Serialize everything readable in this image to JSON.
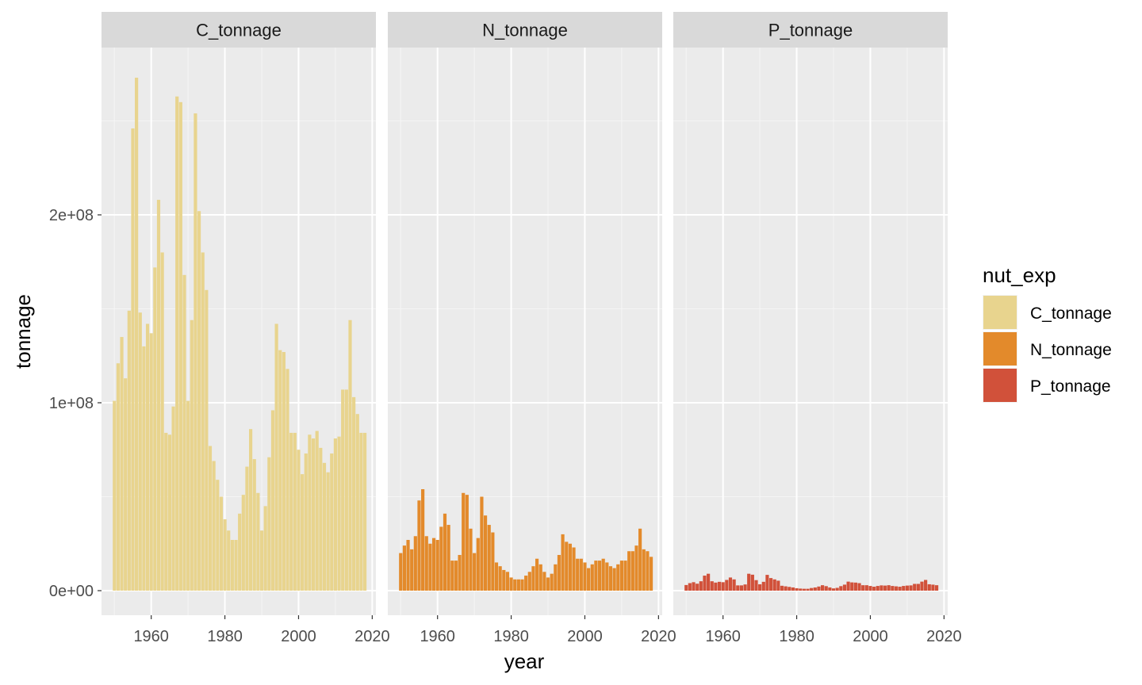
{
  "chart_data": {
    "type": "bar",
    "xlabel": "year",
    "ylabel": "tonnage",
    "x_ticks": [
      1960,
      1980,
      2000,
      2020
    ],
    "y_ticks": [
      0,
      100000000,
      200000000
    ],
    "y_tick_labels": [
      "0e+00",
      "1e+08",
      "2e+08"
    ],
    "xlim": [
      1946.5,
      2021
    ],
    "ylim": [
      -13000000,
      310000000
    ],
    "grid": true,
    "legend": {
      "title": "nut_exp",
      "placement": "right",
      "entries": [
        "C_tonnage",
        "N_tonnage",
        "P_tonnage"
      ]
    },
    "years": [
      1950,
      1951,
      1952,
      1953,
      1954,
      1955,
      1956,
      1957,
      1958,
      1959,
      1960,
      1961,
      1962,
      1963,
      1964,
      1965,
      1966,
      1967,
      1968,
      1969,
      1970,
      1971,
      1972,
      1973,
      1974,
      1975,
      1976,
      1977,
      1978,
      1979,
      1980,
      1981,
      1982,
      1983,
      1984,
      1985,
      1986,
      1987,
      1988,
      1989,
      1990,
      1991,
      1992,
      1993,
      1994,
      1995,
      1996,
      1997,
      1998,
      1999,
      2000,
      2001,
      2002,
      2003,
      2004,
      2005,
      2006,
      2007,
      2008,
      2009,
      2010,
      2011,
      2012,
      2013,
      2014,
      2015,
      2016,
      2017,
      2018
    ],
    "panels": [
      {
        "name": "C_tonnage",
        "color": "#E8D48E",
        "values": [
          101000000,
          121000000,
          135000000,
          113000000,
          149000000,
          246000000,
          273000000,
          148000000,
          130000000,
          142000000,
          137000000,
          172000000,
          208000000,
          180000000,
          84000000,
          83000000,
          98000000,
          263000000,
          260000000,
          168000000,
          101000000,
          144000000,
          254000000,
          202000000,
          180000000,
          160000000,
          77000000,
          69000000,
          59000000,
          50000000,
          38000000,
          32000000,
          27000000,
          27000000,
          41000000,
          51000000,
          66000000,
          86000000,
          70000000,
          52000000,
          32000000,
          45000000,
          71000000,
          96000000,
          142000000,
          128000000,
          127000000,
          118000000,
          84000000,
          84000000,
          75000000,
          62000000,
          73000000,
          83000000,
          81000000,
          85000000,
          76000000,
          68000000,
          63000000,
          73000000,
          81000000,
          82000000,
          107000000,
          107000000,
          144000000,
          103000000,
          94000000,
          84000000,
          84000000
        ]
      },
      {
        "name": "N_tonnage",
        "color": "#E38A2B",
        "values": [
          20000000,
          24000000,
          27000000,
          22000000,
          29000000,
          48000000,
          54000000,
          29000000,
          25000000,
          28000000,
          27000000,
          34000000,
          41000000,
          35000000,
          16000000,
          16000000,
          19000000,
          52000000,
          51000000,
          33000000,
          20000000,
          28000000,
          50000000,
          40000000,
          35000000,
          31000000,
          15000000,
          13000000,
          11000000,
          10000000,
          7000000,
          6000000,
          6000000,
          6000000,
          8000000,
          10000000,
          13000000,
          17000000,
          14000000,
          10000000,
          7000000,
          9000000,
          14000000,
          19000000,
          30000000,
          26000000,
          25000000,
          23000000,
          17000000,
          17000000,
          15000000,
          12000000,
          14000000,
          16000000,
          16000000,
          17000000,
          15000000,
          13000000,
          12000000,
          14000000,
          16000000,
          16000000,
          21000000,
          21000000,
          24000000,
          33000000,
          22000000,
          21000000,
          18000000
        ]
      },
      {
        "name": "P_tonnage",
        "color": "#D1513A",
        "values": [
          3000000,
          4000000,
          4500000,
          3700000,
          5000000,
          8000000,
          9000000,
          5000000,
          4300000,
          4700000,
          4500000,
          5700000,
          7000000,
          6000000,
          2800000,
          2800000,
          3300000,
          9000000,
          8500000,
          5600000,
          3400000,
          4700000,
          8400000,
          6700000,
          6000000,
          5300000,
          2600000,
          2300000,
          2000000,
          1700000,
          1300000,
          1100000,
          1000000,
          1000000,
          1400000,
          1700000,
          2200000,
          2900000,
          2400000,
          1700000,
          1200000,
          1500000,
          2400000,
          3200000,
          4800000,
          4400000,
          4300000,
          4000000,
          2900000,
          2900000,
          2500000,
          2100000,
          2500000,
          2800000,
          2700000,
          2900000,
          2500000,
          2300000,
          2100000,
          2500000,
          2700000,
          2800000,
          3600000,
          3600000,
          4800000,
          5700000,
          3400000,
          3200000,
          2900000
        ]
      }
    ]
  }
}
